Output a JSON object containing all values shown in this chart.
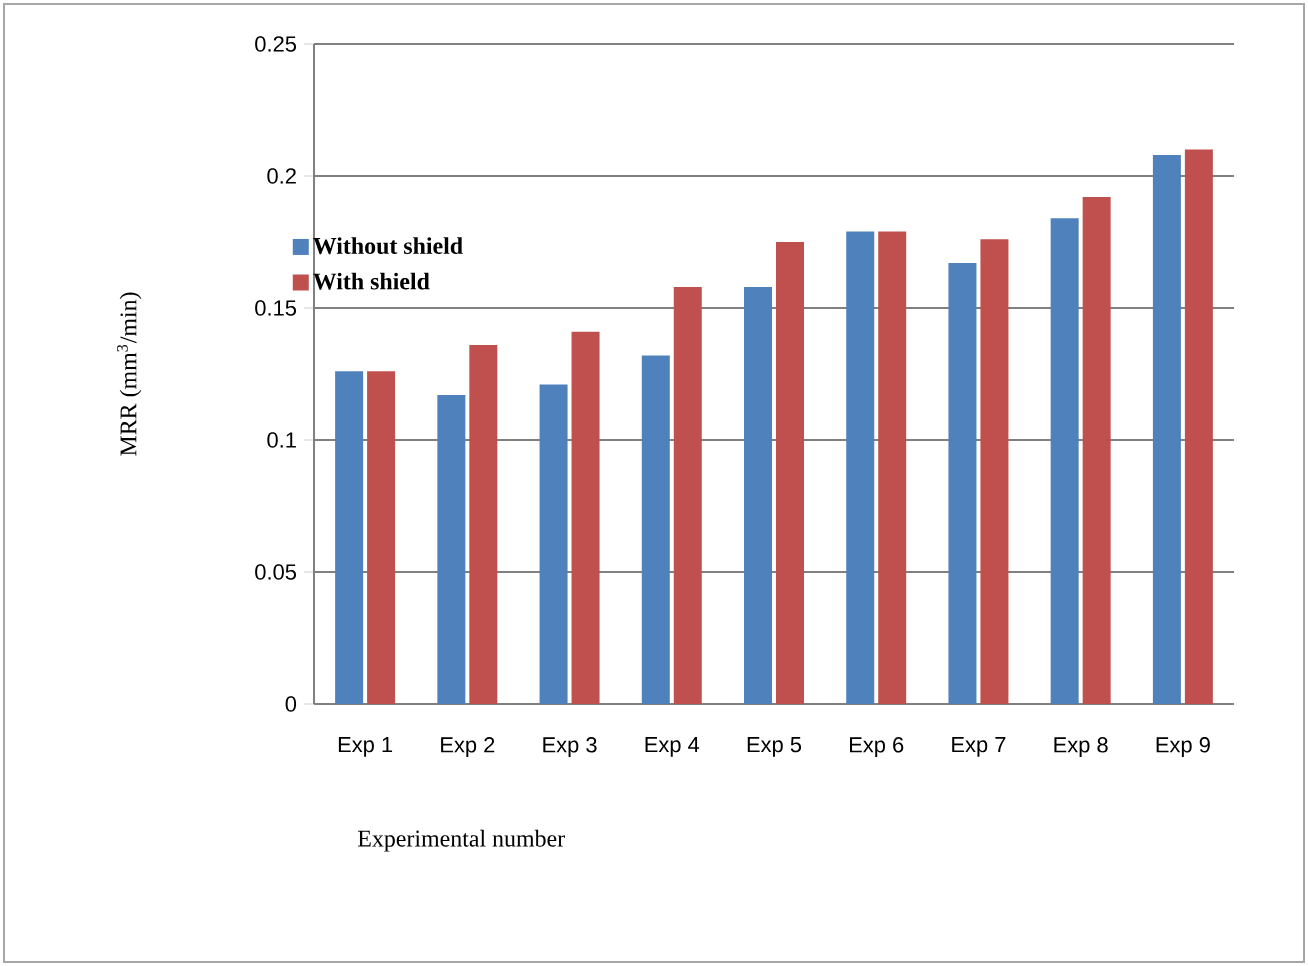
{
  "chart_data": {
    "type": "bar",
    "xlabel": "Experimental number",
    "ylabel": "MRR (mm$^{3}$/min)",
    "categories": [
      "Exp 1",
      "Exp 2",
      "Exp 3",
      "Exp 4",
      "Exp 5",
      "Exp 6",
      "Exp 7",
      "Exp 8",
      "Exp 9"
    ],
    "series": [
      {
        "name": "Without shield",
        "color": "#4f81bd",
        "values": [
          0.126,
          0.117,
          0.121,
          0.132,
          0.158,
          0.179,
          0.167,
          0.184,
          0.208
        ]
      },
      {
        "name": "With shield",
        "color": "#c0504d",
        "values": [
          0.126,
          0.136,
          0.141,
          0.158,
          0.175,
          0.179,
          0.176,
          0.192,
          0.21
        ]
      }
    ],
    "ylim": [
      0,
      0.25
    ],
    "yticks": [
      0,
      0.05,
      0.1,
      0.15,
      0.2,
      0.25
    ],
    "grid": "y",
    "legend": "top left"
  }
}
